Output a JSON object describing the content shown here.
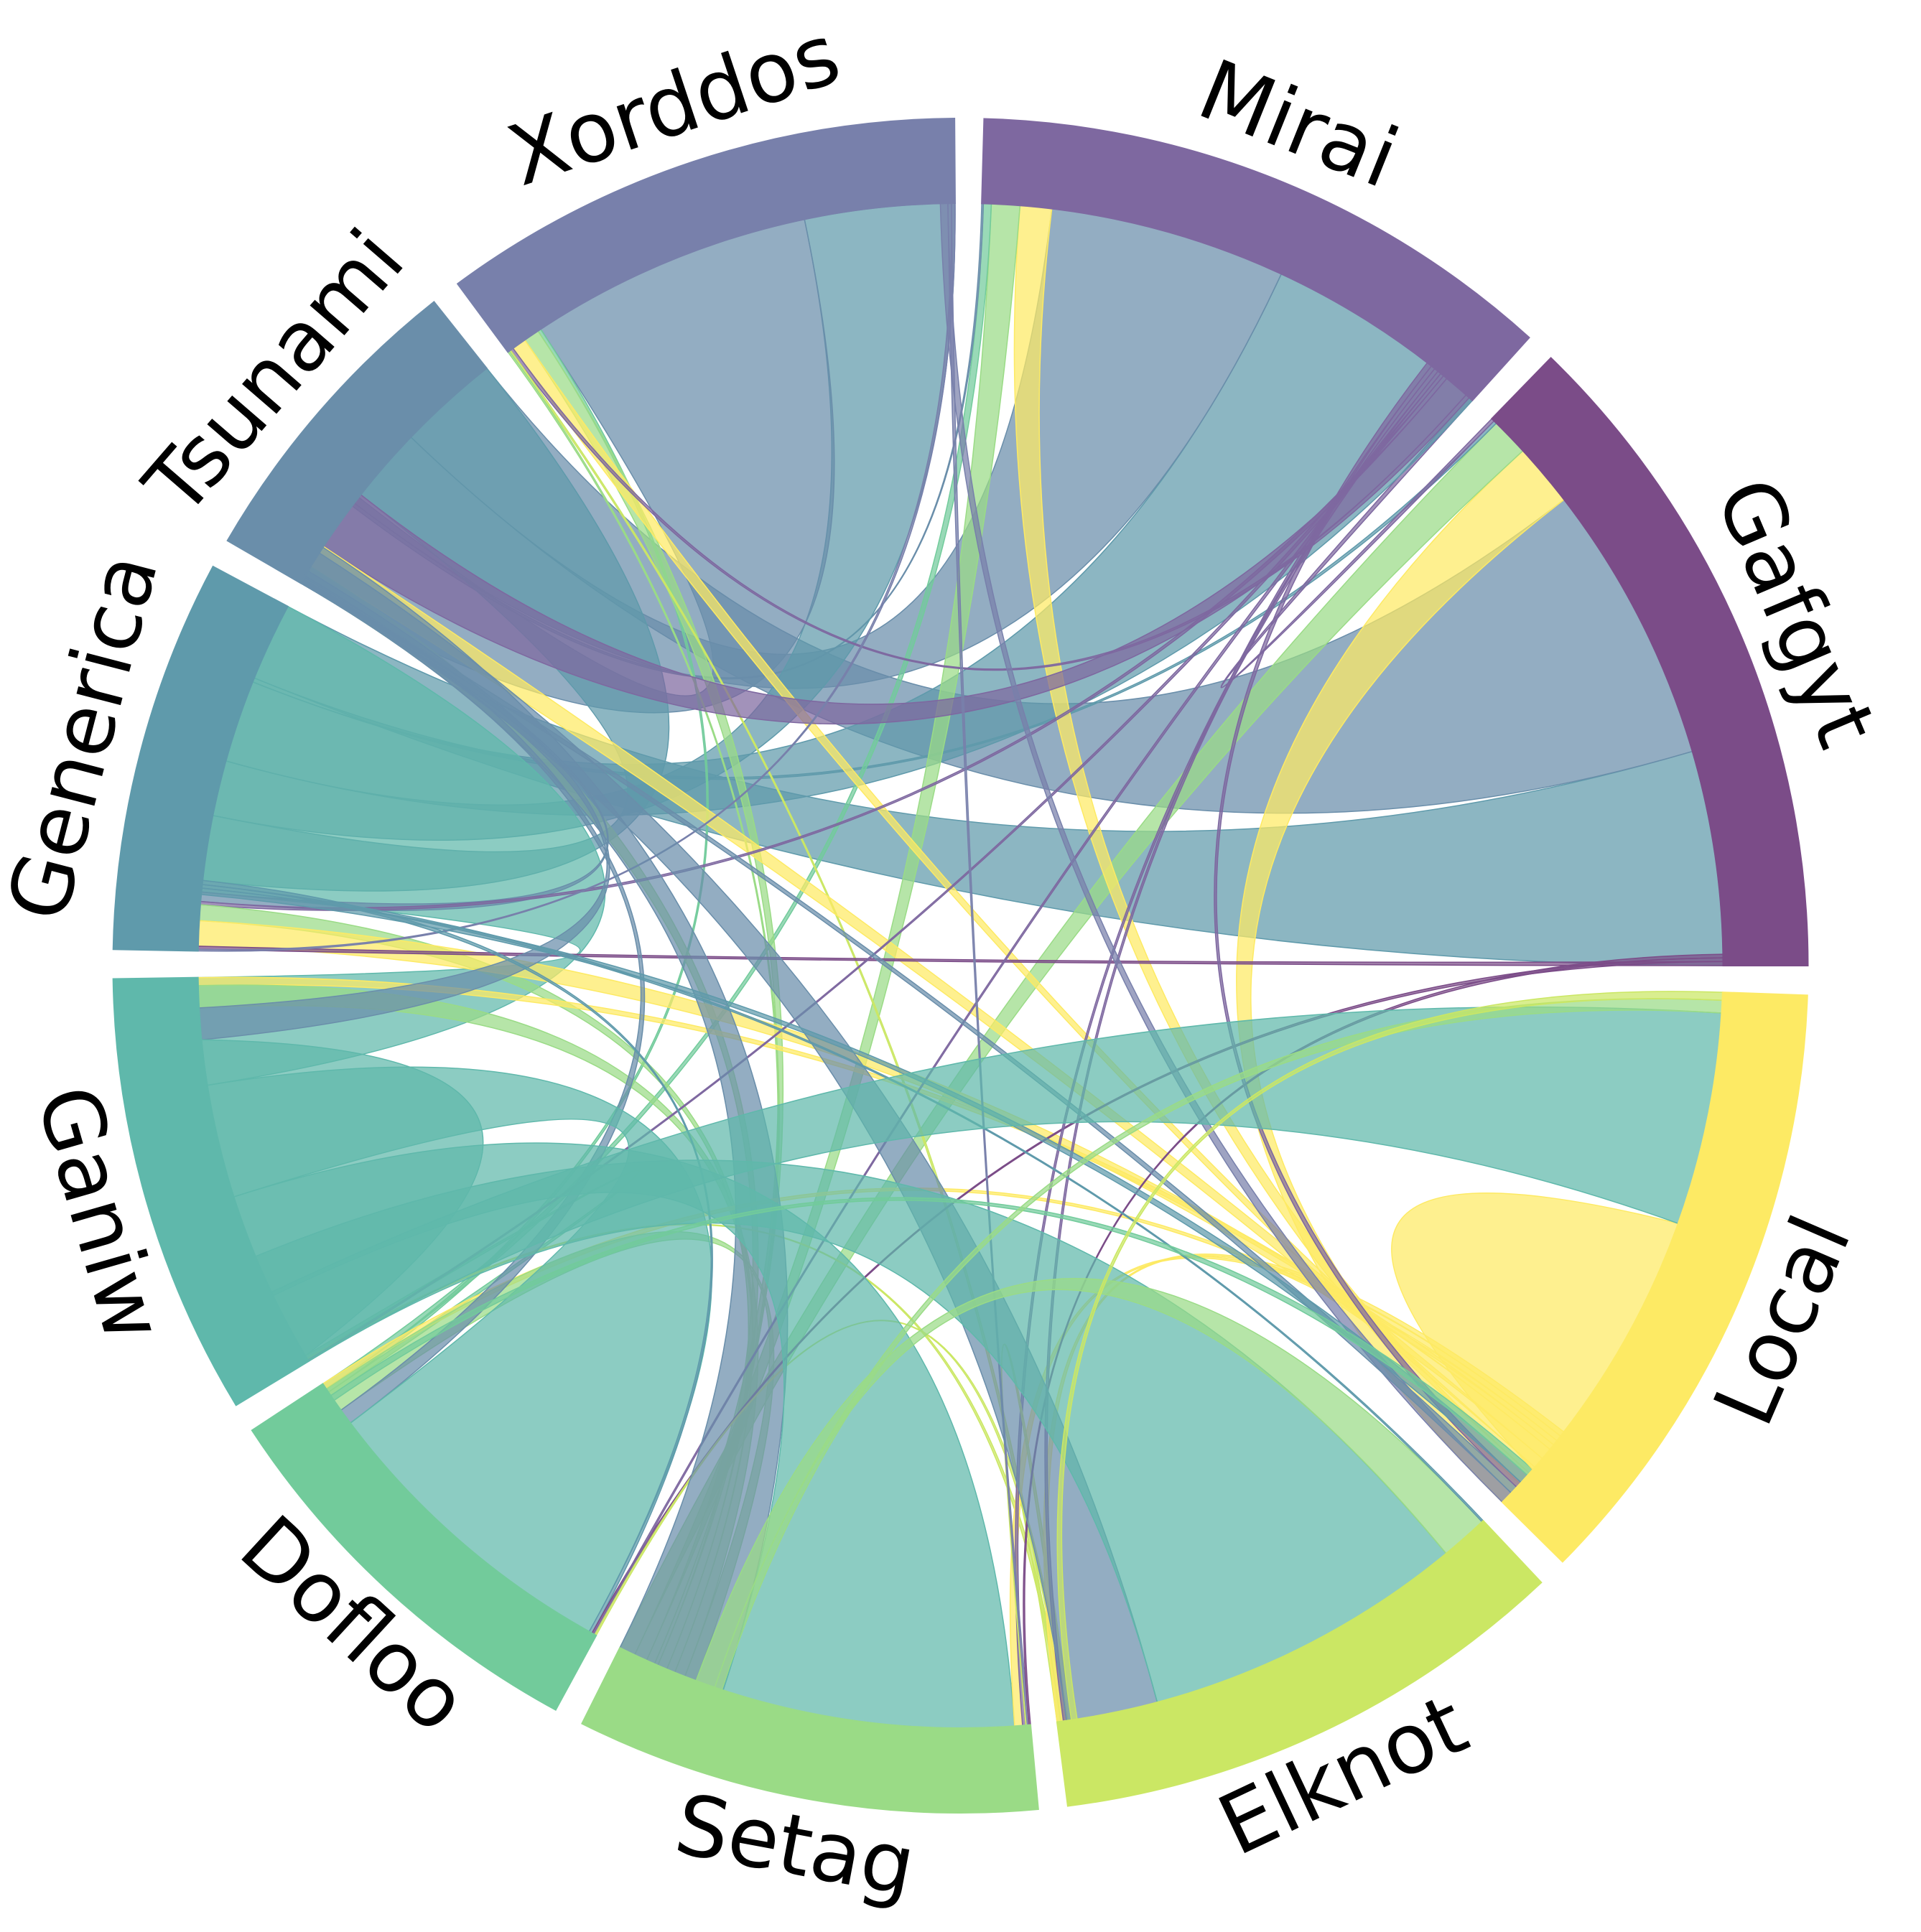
{
  "chart_data": {
    "type": "chord",
    "groups": [
      {
        "name": "Gafgyt",
        "color": "#7b4c88"
      },
      {
        "name": "Mirai",
        "color": "#7e68a0"
      },
      {
        "name": "Xorddos",
        "color": "#7880ab"
      },
      {
        "name": "Tsunami",
        "color": "#6a8eaa"
      },
      {
        "name": "Generica",
        "color": "#5f9aab"
      },
      {
        "name": "Ganiw",
        "color": "#5fb8ab"
      },
      {
        "name": "Dofloo",
        "color": "#72cb9b"
      },
      {
        "name": "Setag",
        "color": "#9adb86"
      },
      {
        "name": "Elknot",
        "color": "#cbe764"
      },
      {
        "name": "Local",
        "color": "#fdea64"
      }
    ],
    "segments": {
      "Gafgyt": [
        [
          "Generica",
          136
        ],
        [
          "Tsunami",
          178
        ],
        [
          "Local",
          40
        ],
        [
          "Setag",
          24
        ],
        [
          "Generica",
          2
        ],
        [
          "Mirai",
          2
        ]
      ],
      "Mirai": [
        [
          "Generica",
          144
        ],
        [
          "Tsunami",
          150
        ],
        [
          "Local",
          20
        ],
        [
          "Setag",
          18
        ],
        [
          "Dofloo",
          5
        ],
        [
          "Tsunami",
          1
        ]
      ],
      "Xorddos": [
        [
          "Generica",
          95
        ],
        [
          "Tsunami",
          180
        ],
        [
          "Dofloo",
          2
        ],
        [
          "Setag",
          10
        ],
        [
          "Local",
          9
        ],
        [
          "Mirai",
          2
        ],
        [
          "Elknot",
          1
        ],
        [
          "Setag",
          1
        ]
      ],
      "Tsunami": [
        [
          "Generica",
          112
        ],
        [
          "Mirai",
          40
        ],
        [
          "Local",
          15
        ],
        [
          "Setag",
          12
        ]
      ],
      "Generica": [
        [
          "Ganiw",
          188
        ],
        [
          "Tsunami",
          6
        ],
        [
          "Mirai",
          2
        ],
        [
          "Setag",
          10
        ],
        [
          "Local",
          16
        ],
        [
          "Gafgyt",
          2
        ],
        [
          "Xorddos",
          1
        ]
      ],
      "Ganiw": [
        [
          "Local",
          5
        ],
        [
          "Setag",
          14
        ],
        [
          "Tsunami",
          20
        ],
        [
          "Ganiw",
          210
        ],
        [
          "Dofloo",
          2
        ],
        [
          "Elknot",
          1
        ],
        [
          "Mirai",
          1
        ]
      ],
      "Dofloo": [
        [
          "Local",
          4
        ],
        [
          "Setag",
          16
        ],
        [
          "Tsunami",
          10
        ],
        [
          "Ganiw",
          200
        ],
        [
          "Generica",
          2
        ],
        [
          "Gafgyt",
          1
        ],
        [
          "Mirai",
          1
        ],
        [
          "Elknot",
          1
        ]
      ],
      "Setag": [
        [
          "Tsunami",
          70
        ],
        [
          "Ganiw",
          185
        ],
        [
          "Local",
          5
        ],
        [
          "Mirai",
          2
        ],
        [
          "Elknot",
          1
        ],
        [
          "Xorddos",
          1
        ],
        [
          "Gafgyt",
          1
        ]
      ],
      "Elknot": [
        [
          "Local",
          4
        ],
        [
          "Mirai",
          2
        ],
        [
          "Tsunami",
          58
        ],
        [
          "Ganiw",
          205
        ],
        [
          "Setag",
          30
        ],
        [
          "Generica",
          1
        ]
      ],
      "Local": [
        [
          "Xorddos",
          8
        ],
        [
          "Tsunami",
          5
        ],
        [
          "Mirai",
          4
        ],
        [
          "Generica",
          6
        ],
        [
          "Dofloo",
          5
        ],
        [
          "Local",
          180
        ],
        [
          "Ganiw",
          135
        ],
        [
          "Setag",
          8
        ],
        [
          "Elknot",
          5
        ]
      ]
    }
  }
}
